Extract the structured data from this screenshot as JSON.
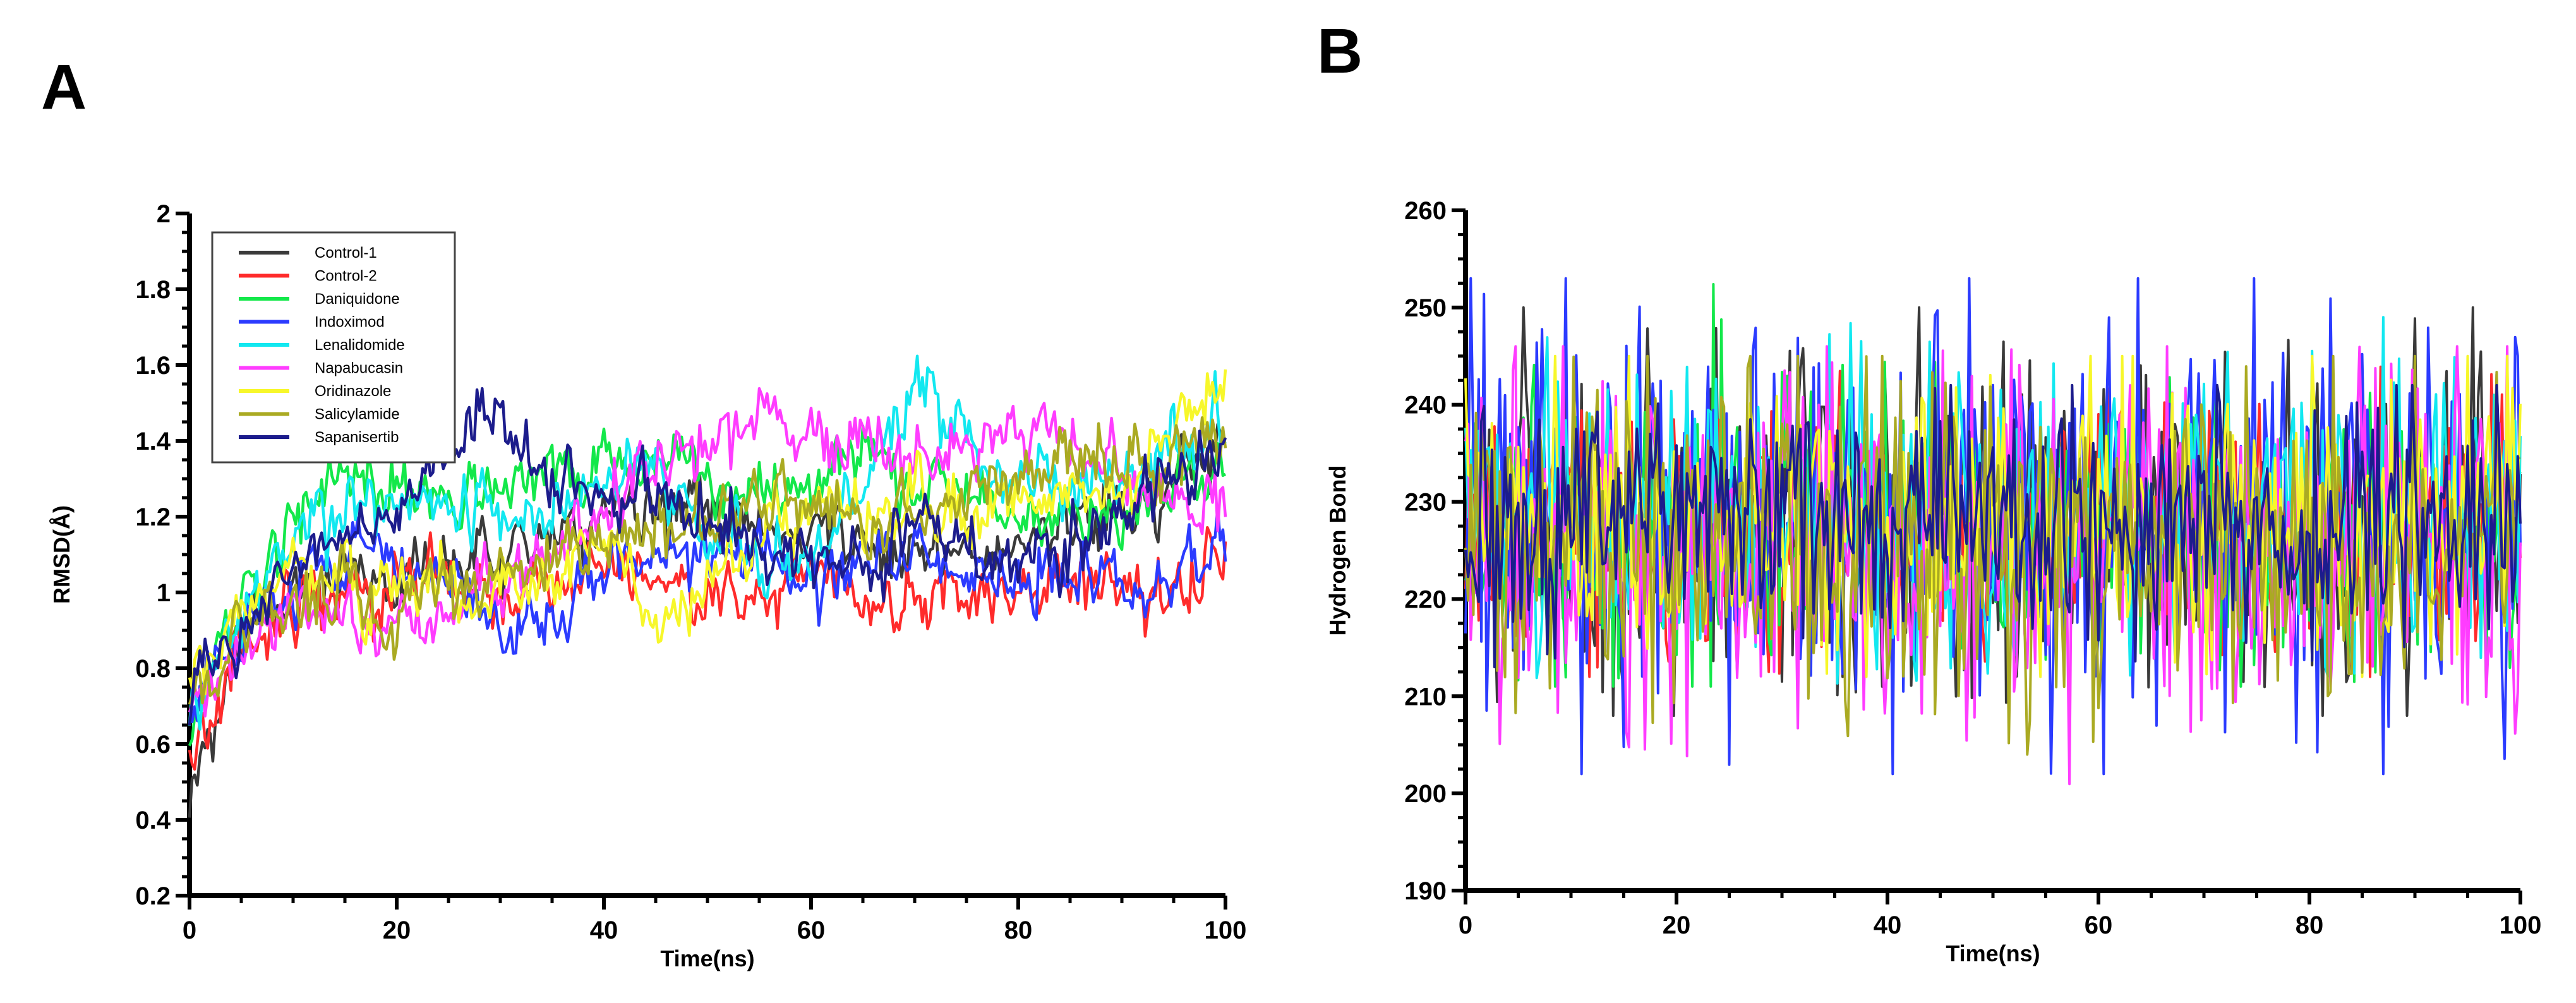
{
  "figure": {
    "panels": [
      {
        "letter": "A"
      },
      {
        "letter": "B"
      }
    ]
  },
  "colors": {
    "Control-1": "#3a3a3a",
    "Control-2": "#ff2b2b",
    "Daniquidone": "#13e84a",
    "Indoximod": "#2b3bff",
    "Lenalidomide": "#12e8f0",
    "Napabucasin": "#ff3cff",
    "Oridinazole": "#f7f72a",
    "Salicylamide": "#aaaa22",
    "Sapanisertib": "#1c1c8c"
  },
  "chart_data": [
    {
      "type": "line",
      "panel": "A",
      "title": "",
      "xlabel": "Time(ns)",
      "ylabel": "RMSD(Å)",
      "xlim": [
        0,
        100
      ],
      "ylim": [
        0.2,
        2
      ],
      "xticks": [
        0,
        20,
        40,
        60,
        80,
        100
      ],
      "yticks": [
        0.2,
        0.4,
        0.6,
        0.8,
        1,
        1.2,
        1.4,
        1.6,
        1.8,
        2
      ],
      "grid": false,
      "legend_position": "top-left",
      "legend": [
        "Control-1",
        "Control-2",
        "Daniquidone",
        "Indoximod",
        "Lenalidomide",
        "Napabucasin",
        "Oridinazole",
        "Salicylamide",
        "Sapanisertib"
      ],
      "x": [
        0,
        5,
        10,
        15,
        20,
        25,
        30,
        35,
        40,
        45,
        50,
        55,
        60,
        65,
        70,
        75,
        80,
        85,
        90,
        95,
        100
      ],
      "series": [
        {
          "name": "Control-1",
          "values": [
            0.42,
            0.88,
            1.0,
            1.05,
            1.05,
            1.1,
            1.12,
            1.15,
            1.18,
            1.2,
            1.22,
            1.18,
            1.15,
            1.12,
            1.1,
            1.12,
            1.15,
            1.18,
            1.22,
            1.28,
            1.4
          ]
        },
        {
          "name": "Control-2",
          "values": [
            0.6,
            0.86,
            0.95,
            1.0,
            1.02,
            1.02,
            1.0,
            1.0,
            1.05,
            1.05,
            1.0,
            1.0,
            1.02,
            1.0,
            1.0,
            1.02,
            1.02,
            1.05,
            1.02,
            1.05,
            1.12
          ]
        },
        {
          "name": "Daniquidone",
          "values": [
            0.6,
            0.95,
            1.2,
            1.35,
            1.28,
            1.25,
            1.3,
            1.3,
            1.35,
            1.38,
            1.3,
            1.25,
            1.3,
            1.38,
            1.28,
            1.25,
            1.2,
            1.22,
            1.2,
            1.28,
            1.3
          ]
        },
        {
          "name": "Indoximod",
          "values": [
            0.7,
            0.88,
            1.0,
            1.1,
            1.1,
            1.05,
            0.92,
            0.95,
            1.05,
            1.1,
            1.12,
            1.1,
            1.05,
            1.12,
            1.1,
            1.05,
            1.02,
            1.05,
            1.0,
            1.05,
            1.1
          ]
        },
        {
          "name": "Lenalidomide",
          "values": [
            0.7,
            0.92,
            1.15,
            1.2,
            1.25,
            1.25,
            1.2,
            1.2,
            1.28,
            1.3,
            1.15,
            1.1,
            1.05,
            1.25,
            1.6,
            1.4,
            1.3,
            1.25,
            1.3,
            1.4,
            1.4
          ]
        },
        {
          "name": "Napabucasin",
          "values": [
            0.7,
            0.85,
            0.98,
            0.92,
            0.9,
            0.95,
            1.0,
            1.1,
            1.25,
            1.35,
            1.4,
            1.45,
            1.4,
            1.42,
            1.35,
            1.4,
            1.35,
            1.4,
            1.3,
            1.25,
            1.2
          ]
        },
        {
          "name": "Oridinazole",
          "values": [
            0.72,
            0.95,
            1.05,
            1.05,
            1.0,
            1.02,
            1.0,
            1.05,
            1.15,
            0.92,
            1.05,
            1.15,
            1.25,
            1.2,
            1.25,
            1.2,
            1.25,
            1.28,
            1.3,
            1.4,
            1.6
          ]
        },
        {
          "name": "Salicylamide",
          "values": [
            0.72,
            0.9,
            0.95,
            1.0,
            0.95,
            0.98,
            1.05,
            1.1,
            1.12,
            1.15,
            1.2,
            1.25,
            1.22,
            1.2,
            1.18,
            1.25,
            1.3,
            1.35,
            1.3,
            1.35,
            1.45
          ]
        },
        {
          "name": "Sapanisertib",
          "values": [
            0.72,
            0.9,
            1.1,
            1.15,
            1.2,
            1.35,
            1.45,
            1.3,
            1.25,
            1.25,
            1.2,
            1.15,
            1.12,
            1.1,
            1.15,
            1.12,
            1.1,
            1.15,
            1.2,
            1.3,
            1.38
          ]
        }
      ]
    },
    {
      "type": "line",
      "panel": "B",
      "title": "",
      "xlabel": "Time(ns)",
      "ylabel": "Hydrogen Bond",
      "xlim": [
        0,
        100
      ],
      "ylim": [
        190,
        260
      ],
      "xticks": [
        0,
        20,
        40,
        60,
        80,
        100
      ],
      "yticks": [
        190,
        200,
        210,
        220,
        230,
        240,
        250,
        260
      ],
      "grid": false,
      "legend_position": "none",
      "series_summary": [
        {
          "name": "Control-1",
          "mean": 228,
          "min": 208,
          "max": 250
        },
        {
          "name": "Control-2",
          "mean": 227,
          "min": 212,
          "max": 247
        },
        {
          "name": "Daniquidone",
          "mean": 227,
          "min": 211,
          "max": 256
        },
        {
          "name": "Indoximod",
          "mean": 227,
          "min": 202,
          "max": 253
        },
        {
          "name": "Lenalidomide",
          "mean": 229,
          "min": 210,
          "max": 249
        },
        {
          "name": "Napabucasin",
          "mean": 225,
          "min": 198,
          "max": 246
        },
        {
          "name": "Oridinazole",
          "mean": 228,
          "min": 212,
          "max": 245
        },
        {
          "name": "Salicylamide",
          "mean": 226,
          "min": 204,
          "max": 245
        },
        {
          "name": "Sapanisertib",
          "mean": 228,
          "min": 213,
          "max": 242
        }
      ]
    }
  ]
}
